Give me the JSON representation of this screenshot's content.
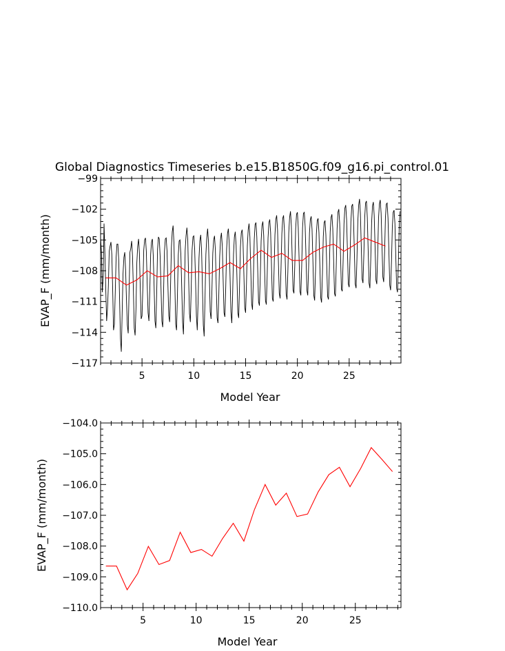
{
  "title": "Global Diagnostics Timeseries b.e15.B1850G.f09_g16.pi_control.01",
  "colors": {
    "monthly": "#000000",
    "annual": "#ff0000",
    "axes": "#000000"
  },
  "chart_data": [
    {
      "type": "line",
      "xlabel": "Model Year",
      "ylabel": "EVAP_F (mm/month)",
      "xlim": [
        1,
        30
      ],
      "ylim": [
        -117,
        -99
      ],
      "xticks": [
        "5",
        "10",
        "15",
        "20",
        "25"
      ],
      "yticks": [
        "-99",
        "-102",
        "-105",
        "-108",
        "-111",
        "-114",
        "-117"
      ],
      "series": [
        {
          "x_start": 1.0,
          "x_step": 0.0833333,
          "values": [
            -104.8,
            -106.2,
            -110.1,
            -108.6,
            -103.4,
            -106.3,
            -109.8,
            -112.9,
            -111.7,
            -109.5,
            -106.1,
            -105.6,
            -105.2,
            -106.4,
            -109.8,
            -113.8,
            -113.2,
            -110.1,
            -106.7,
            -105.4,
            -105.4,
            -106.9,
            -110.7,
            -114.6,
            -115.9,
            -112.1,
            -108.3,
            -106.7,
            -106.2,
            -107.9,
            -110.9,
            -113.3,
            -114.1,
            -110.0,
            -106.2,
            -105.8,
            -105.1,
            -106.6,
            -109.9,
            -113.6,
            -114.3,
            -111.7,
            -107.2,
            -105.6,
            -104.9,
            -106.3,
            -109.8,
            -112.7,
            -112.4,
            -109.6,
            -106.0,
            -105.0,
            -104.8,
            -106.1,
            -109.3,
            -112.1,
            -112.9,
            -110.0,
            -106.4,
            -105.2,
            -104.9,
            -106.5,
            -109.5,
            -112.9,
            -113.6,
            -110.2,
            -105.9,
            -104.7,
            -104.9,
            -106.6,
            -109.7,
            -112.9,
            -113.5,
            -110.0,
            -106.1,
            -104.9,
            -104.8,
            -106.1,
            -109.4,
            -112.4,
            -113.0,
            -109.7,
            -105.8,
            -104.2,
            -103.6,
            -105.3,
            -109.2,
            -113.2,
            -113.8,
            -110.5,
            -106.5,
            -105.1,
            -105.0,
            -106.4,
            -109.6,
            -113.0,
            -114.2,
            -110.4,
            -106.0,
            -104.6,
            -103.8,
            -105.0,
            -108.7,
            -112.2,
            -113.0,
            -109.7,
            -106.0,
            -104.7,
            -104.6,
            -105.9,
            -108.9,
            -112.4,
            -113.8,
            -110.9,
            -106.8,
            -105.1,
            -104.5,
            -106.0,
            -109.6,
            -113.3,
            -114.4,
            -110.6,
            -106.4,
            -104.8,
            -103.9,
            -105.2,
            -108.5,
            -112.0,
            -112.7,
            -109.9,
            -106.3,
            -105.0,
            -104.6,
            -106.0,
            -109.4,
            -112.6,
            -113.1,
            -110.2,
            -106.6,
            -104.9,
            -104.3,
            -105.6,
            -108.9,
            -112.1,
            -112.5,
            -109.6,
            -105.9,
            -104.4,
            -103.9,
            -105.3,
            -108.6,
            -112.0,
            -113.1,
            -110.3,
            -106.4,
            -104.7,
            -104.2,
            -105.5,
            -108.7,
            -112.1,
            -112.6,
            -109.4,
            -105.7,
            -104.3,
            -104.0,
            -105.2,
            -108.3,
            -111.6,
            -112.1,
            -109.3,
            -105.6,
            -104.0,
            -103.4,
            -104.7,
            -107.9,
            -111.2,
            -111.8,
            -108.8,
            -105.0,
            -103.5,
            -103.3,
            -104.7,
            -107.8,
            -111.0,
            -111.4,
            -108.6,
            -105.1,
            -103.6,
            -103.2,
            -104.6,
            -107.8,
            -110.9,
            -111.3,
            -108.5,
            -104.8,
            -103.3,
            -103.0,
            -104.3,
            -107.5,
            -110.7,
            -111.0,
            -108.0,
            -104.5,
            -103.0,
            -102.6,
            -104.0,
            -107.1,
            -110.2,
            -110.7,
            -107.9,
            -104.4,
            -102.9,
            -102.6,
            -104.1,
            -107.2,
            -110.3,
            -110.8,
            -108.0,
            -104.3,
            -102.8,
            -102.2,
            -103.6,
            -106.8,
            -109.9,
            -110.2,
            -107.4,
            -103.9,
            -102.5,
            -102.3,
            -103.8,
            -106.9,
            -110.0,
            -110.4,
            -107.5,
            -103.8,
            -102.4,
            -102.3,
            -103.7,
            -106.7,
            -109.9,
            -110.4,
            -107.7,
            -104.3,
            -103.0,
            -102.7,
            -104.0,
            -107.1,
            -110.4,
            -110.9,
            -108.0,
            -104.4,
            -103.1,
            -102.9,
            -104.3,
            -107.4,
            -110.6,
            -111.1,
            -108.3,
            -104.7,
            -103.3,
            -103.1,
            -104.5,
            -107.5,
            -110.5,
            -110.8,
            -107.9,
            -104.2,
            -102.8,
            -102.5,
            -103.9,
            -107.0,
            -110.2,
            -110.5,
            -107.6,
            -103.9,
            -102.3,
            -102.0,
            -103.4,
            -106.6,
            -109.8,
            -110.0,
            -107.0,
            -103.4,
            -101.9,
            -101.6,
            -103.0,
            -106.1,
            -109.3,
            -109.6,
            -106.7,
            -103.2,
            -101.7,
            -101.5,
            -102.9,
            -106.1,
            -109.3,
            -109.7,
            -106.9,
            -103.2,
            -101.6,
            -101.0,
            -102.4,
            -105.6,
            -108.8,
            -109.2,
            -106.4,
            -102.8,
            -101.4,
            -101.2,
            -102.8,
            -106.0,
            -109.2,
            -109.7,
            -106.9,
            -103.3,
            -101.7,
            -101.3,
            -102.6,
            -105.7,
            -108.9,
            -109.3,
            -106.5,
            -102.9,
            -101.5,
            -101.1,
            -102.4,
            -105.5,
            -108.6,
            -109.1,
            -106.3,
            -102.8,
            -101.5,
            -101.4,
            -102.9,
            -106.1,
            -109.4,
            -109.9,
            -107.2,
            -103.7,
            -102.3,
            -102.1,
            -103.4,
            -106.6,
            -109.7,
            -110.1,
            -107.2,
            -103.6,
            -102.2
          ],
          "name": ""
        },
        {
          "x": [
            1.5,
            2.5,
            3.5,
            4.5,
            5.5,
            6.5,
            7.5,
            8.5,
            9.5,
            10.5,
            11.5,
            12.5,
            13.5,
            14.5,
            15.5,
            16.5,
            17.5,
            18.5,
            19.5,
            20.5,
            21.5,
            22.5,
            23.5,
            24.5,
            25.5,
            26.5,
            27.5,
            28.5
          ],
          "values": [
            -108.7,
            -108.7,
            -109.4,
            -108.9,
            -108.0,
            -108.6,
            -108.5,
            -107.5,
            -108.2,
            -108.1,
            -108.3,
            -107.8,
            -107.2,
            -107.8,
            -106.8,
            -106.0,
            -106.7,
            -106.3,
            -107.0,
            -107.0,
            -106.2,
            -105.7,
            -105.4,
            -106.1,
            -105.5,
            -104.8,
            -105.2,
            -105.6
          ],
          "name": ""
        }
      ]
    },
    {
      "type": "line",
      "xlabel": "Model Year",
      "ylabel": "EVAP_F (mm/month)",
      "xlim": [
        1,
        29.3
      ],
      "ylim": [
        -110.0,
        -104.0
      ],
      "xticks": [
        "5",
        "10",
        "15",
        "20",
        "25"
      ],
      "yticks": [
        "-104.0",
        "-105.0",
        "-106.0",
        "-107.0",
        "-108.0",
        "-109.0",
        "-110.0"
      ],
      "series": [
        {
          "x": [
            1.5,
            2.5,
            3.5,
            4.5,
            5.5,
            6.5,
            7.5,
            8.5,
            9.5,
            10.5,
            11.5,
            12.5,
            13.5,
            14.5,
            15.5,
            16.5,
            17.5,
            18.5,
            19.5,
            20.5,
            21.5,
            22.5,
            23.5,
            24.5,
            25.5,
            26.5,
            27.5,
            28.5
          ],
          "values": [
            -108.65,
            -108.65,
            -109.42,
            -108.89,
            -108.01,
            -108.6,
            -108.47,
            -107.55,
            -108.21,
            -108.11,
            -108.33,
            -107.75,
            -107.26,
            -107.84,
            -106.81,
            -106.0,
            -106.67,
            -106.28,
            -107.04,
            -106.96,
            -106.24,
            -105.68,
            -105.44,
            -106.07,
            -105.48,
            -104.8,
            -105.18,
            -105.58
          ],
          "name": ""
        }
      ]
    }
  ]
}
